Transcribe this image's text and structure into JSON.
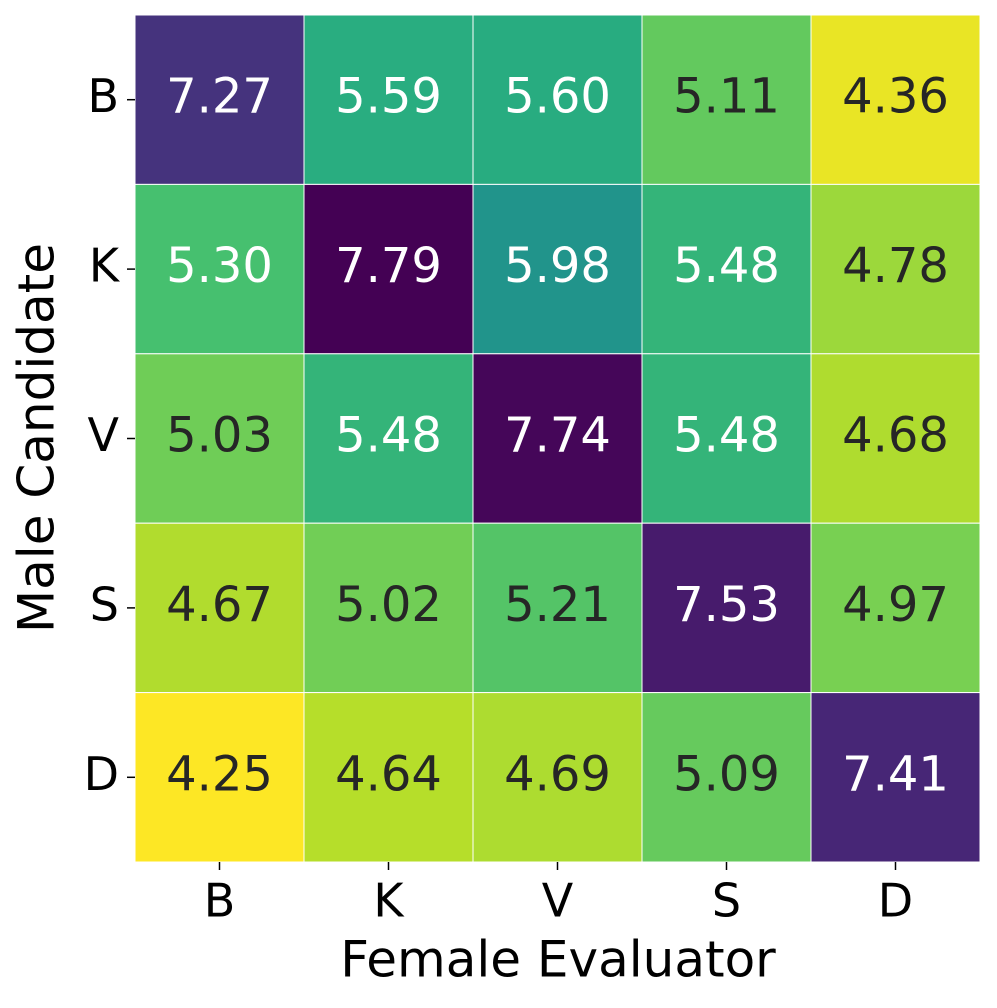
{
  "chart_data": {
    "type": "heatmap",
    "x_label": "Female Evaluator",
    "y_label": "Male Candidate",
    "x_categories": [
      "B",
      "K",
      "V",
      "S",
      "D"
    ],
    "y_categories": [
      "B",
      "K",
      "V",
      "S",
      "D"
    ],
    "values": [
      [
        7.27,
        5.59,
        5.6,
        5.11,
        4.36
      ],
      [
        5.3,
        7.79,
        5.98,
        5.48,
        4.78
      ],
      [
        5.03,
        5.48,
        7.74,
        5.48,
        4.68
      ],
      [
        4.67,
        5.02,
        5.21,
        7.53,
        4.97
      ],
      [
        4.25,
        4.64,
        4.69,
        5.09,
        7.41
      ]
    ],
    "value_labels": [
      [
        "7.27",
        "5.59",
        "5.60",
        "5.11",
        "4.36"
      ],
      [
        "5.30",
        "7.79",
        "5.98",
        "5.48",
        "4.78"
      ],
      [
        "5.03",
        "5.48",
        "7.74",
        "5.48",
        "4.68"
      ],
      [
        "4.67",
        "5.02",
        "5.21",
        "7.53",
        "4.97"
      ],
      [
        "4.25",
        "4.64",
        "4.69",
        "5.09",
        "7.41"
      ]
    ],
    "colormap": "viridis_r"
  }
}
